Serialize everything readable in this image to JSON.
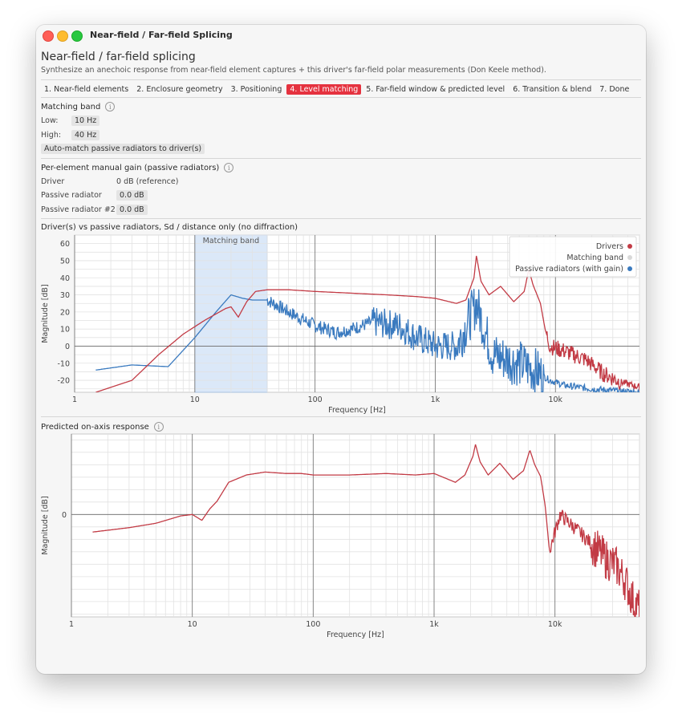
{
  "window": {
    "title": "Near-field / Far-field Splicing"
  },
  "header": {
    "title": "Near-field / far-field splicing",
    "subtitle": "Synthesize an anechoic response from near-field element captures + this driver's far-field polar measurements (Don Keele method)."
  },
  "steps": [
    {
      "label": "1. Near-field elements",
      "active": false
    },
    {
      "label": "2. Enclosure geometry",
      "active": false
    },
    {
      "label": "3. Positioning",
      "active": false
    },
    {
      "label": "4. Level matching",
      "active": true
    },
    {
      "label": "5. Far-field window & predicted level",
      "active": false
    },
    {
      "label": "6. Transition & blend",
      "active": false
    },
    {
      "label": "7. Done",
      "active": false
    }
  ],
  "matching_band": {
    "heading": "Matching band",
    "low_label": "Low:",
    "low_value": "10 Hz",
    "high_label": "High:",
    "high_value": "40 Hz",
    "auto_button": "Auto-match passive radiators to driver(s)"
  },
  "manual_gain": {
    "heading": "Per-element manual gain (passive radiators)",
    "rows": [
      {
        "label": "Driver",
        "value": "0 dB (reference)",
        "editable": false
      },
      {
        "label": "Passive radiator",
        "value": "0.0 dB",
        "editable": true
      },
      {
        "label": "Passive radiator #2",
        "value": "0.0 dB",
        "editable": true
      }
    ]
  },
  "colors": {
    "drivers": "#c23b45",
    "passive": "#3a7abf",
    "band": "#dbe8f8",
    "accent": "#e5323f"
  },
  "chart1_heading": "Driver(s) vs passive radiators, Sd / distance only (no diffraction)",
  "chart2_heading": "Predicted on-axis response",
  "chart_data": [
    {
      "type": "line",
      "title": "Driver(s) vs passive radiators, Sd / distance only (no diffraction)",
      "xlabel": "Frequency [Hz]",
      "ylabel": "Magnitude [dB]",
      "x_scale": "log",
      "xlim": [
        1,
        50000
      ],
      "ylim": [
        -27,
        65
      ],
      "x_ticks": [
        "1",
        "10",
        "100",
        "1k",
        "10k"
      ],
      "y_ticks": [
        "60",
        "50",
        "40",
        "30",
        "20",
        "10",
        "0",
        "-10",
        "-20"
      ],
      "band_label": "Matching band",
      "band": [
        10,
        40
      ],
      "legend_position": "top-right",
      "legend": [
        "Drivers",
        "Matching band",
        "Passive radiators (with gain)"
      ],
      "series": [
        {
          "name": "Drivers",
          "color": "#c23b45",
          "x": [
            1.5,
            3,
            5,
            8,
            12,
            18,
            20,
            23,
            27,
            32,
            40,
            60,
            100,
            200,
            400,
            700,
            1000,
            1500,
            1800,
            2100,
            2200,
            2400,
            2800,
            3500,
            4500,
            5500,
            6000,
            6500,
            7500,
            8200,
            9000,
            12000,
            18000,
            25000,
            35000,
            50000
          ],
          "y": [
            -27,
            -20,
            -5,
            7,
            15,
            22,
            23,
            17,
            26,
            32,
            33,
            33,
            32,
            31,
            30,
            29,
            28,
            25,
            27,
            40,
            53,
            38,
            30,
            35,
            26,
            32,
            45,
            36,
            25,
            10,
            0,
            -3,
            -8,
            -16,
            -21,
            -24
          ]
        },
        {
          "name": "Passive radiators (with gain)",
          "color": "#3a7abf",
          "x": [
            1.5,
            3,
            6,
            10,
            15,
            20,
            25,
            30,
            40,
            60,
            100,
            150,
            200,
            300,
            500,
            700,
            1000,
            1500,
            2200,
            3000,
            5000,
            7000,
            9000,
            12000,
            20000,
            30000,
            50000
          ],
          "y": [
            -14,
            -11,
            -12,
            5,
            20,
            30,
            28,
            27,
            27,
            20,
            12,
            8,
            10,
            14,
            12,
            5,
            0,
            0,
            25,
            -5,
            -10,
            -15,
            -20,
            -23,
            -25,
            -26,
            -27
          ]
        }
      ]
    },
    {
      "type": "line",
      "title": "Predicted on-axis response",
      "xlabel": "Frequency [Hz]",
      "ylabel": "Magnitude [dB]",
      "x_scale": "log",
      "xlim": [
        1,
        50000
      ],
      "ylim": [
        -70,
        55
      ],
      "x_ticks": [
        "1",
        "10",
        "100",
        "1k",
        "10k"
      ],
      "y_ticks": [
        "0"
      ],
      "series": [
        {
          "name": "",
          "color": "#c23b45",
          "x": [
            1.5,
            3,
            5,
            8,
            10,
            12,
            14,
            16,
            20,
            28,
            40,
            60,
            80,
            100,
            200,
            400,
            700,
            1000,
            1500,
            1800,
            2100,
            2200,
            2400,
            2800,
            3500,
            4500,
            5500,
            6200,
            6800,
            7600,
            8300,
            9000,
            11000,
            15000,
            20000,
            26000,
            32000,
            38000,
            45000,
            50000
          ],
          "y": [
            -12,
            -9,
            -6,
            -1,
            0,
            -4,
            4,
            9,
            22,
            27,
            29,
            28,
            28,
            27,
            27,
            28,
            27,
            28,
            22,
            27,
            40,
            48,
            36,
            27,
            35,
            24,
            30,
            44,
            34,
            26,
            6,
            -25,
            0,
            -10,
            -20,
            -30,
            -35,
            -45,
            -60,
            -65
          ]
        }
      ]
    }
  ]
}
